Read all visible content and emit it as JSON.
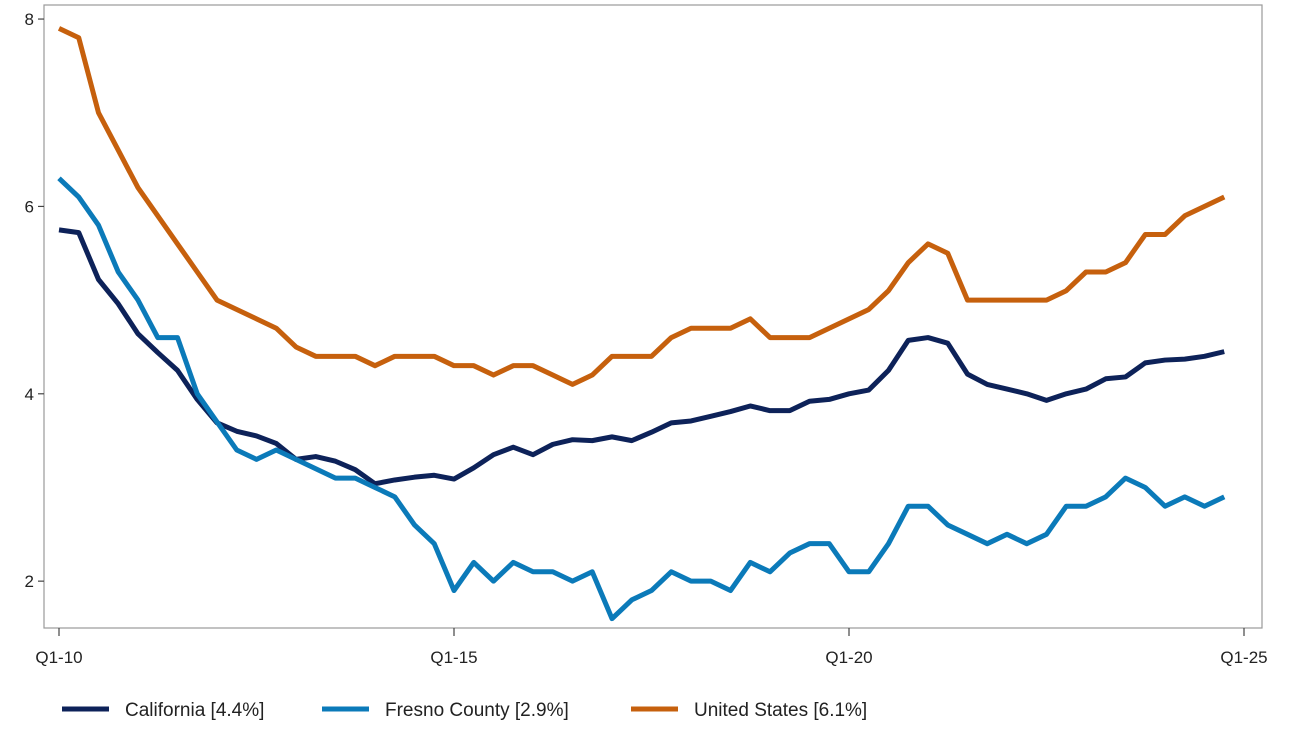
{
  "chart_data": {
    "type": "line",
    "title": "",
    "xlabel": "",
    "ylabel": "",
    "x_tick_labels": [
      "Q1-10",
      "Q1-15",
      "Q1-20",
      "Q1-25"
    ],
    "y_ticks": [
      2,
      4,
      6,
      8
    ],
    "ylim": [
      1.5,
      8.15
    ],
    "grid": false,
    "legend_position": "bottom",
    "series": [
      {
        "name": "California [4.4%]",
        "color": "#0d2259",
        "values": [
          5.75,
          5.72,
          5.22,
          4.96,
          4.64,
          4.44,
          4.25,
          3.94,
          3.69,
          3.6,
          3.55,
          3.47,
          3.3,
          3.33,
          3.28,
          3.19,
          3.04,
          3.08,
          3.11,
          3.13,
          3.09,
          3.21,
          3.35,
          3.43,
          3.35,
          3.46,
          3.51,
          3.5,
          3.54,
          3.5,
          3.59,
          3.69,
          3.71,
          3.76,
          3.81,
          3.87,
          3.82,
          3.82,
          3.92,
          3.94,
          4.0,
          4.04,
          4.25,
          4.57,
          4.6,
          4.54,
          4.21,
          4.1,
          4.05,
          4.0,
          3.93,
          4.0,
          4.05,
          4.16,
          4.18,
          4.33,
          4.36,
          4.37,
          4.4,
          4.45
        ]
      },
      {
        "name": "Fresno County [2.9%]",
        "color": "#0b7ab9",
        "values": [
          6.3,
          6.1,
          5.8,
          5.3,
          5.0,
          4.6,
          4.6,
          4.0,
          3.7,
          3.4,
          3.3,
          3.4,
          3.3,
          3.2,
          3.1,
          3.1,
          3.0,
          2.9,
          2.6,
          2.4,
          1.9,
          2.2,
          2.0,
          2.2,
          2.1,
          2.1,
          2.0,
          2.1,
          1.6,
          1.8,
          1.9,
          2.1,
          2.0,
          2.0,
          1.9,
          2.2,
          2.1,
          2.3,
          2.4,
          2.4,
          2.1,
          2.1,
          2.4,
          2.8,
          2.8,
          2.6,
          2.5,
          2.4,
          2.5,
          2.4,
          2.5,
          2.8,
          2.8,
          2.9,
          3.1,
          3.0,
          2.8,
          2.9,
          2.8,
          2.9
        ]
      },
      {
        "name": "United States [6.1%]",
        "color": "#c6600d",
        "values": [
          7.9,
          7.8,
          7.0,
          6.6,
          6.2,
          5.9,
          5.6,
          5.3,
          5.0,
          4.9,
          4.8,
          4.7,
          4.5,
          4.4,
          4.4,
          4.4,
          4.3,
          4.4,
          4.4,
          4.4,
          4.3,
          4.3,
          4.2,
          4.3,
          4.3,
          4.2,
          4.1,
          4.2,
          4.4,
          4.4,
          4.4,
          4.6,
          4.7,
          4.7,
          4.7,
          4.8,
          4.6,
          4.6,
          4.6,
          4.7,
          4.8,
          4.9,
          5.1,
          5.4,
          5.6,
          5.5,
          5.0,
          5.0,
          5.0,
          5.0,
          5.0,
          5.1,
          5.3,
          5.3,
          5.4,
          5.7,
          5.7,
          5.9,
          6.0,
          6.1
        ]
      }
    ]
  }
}
